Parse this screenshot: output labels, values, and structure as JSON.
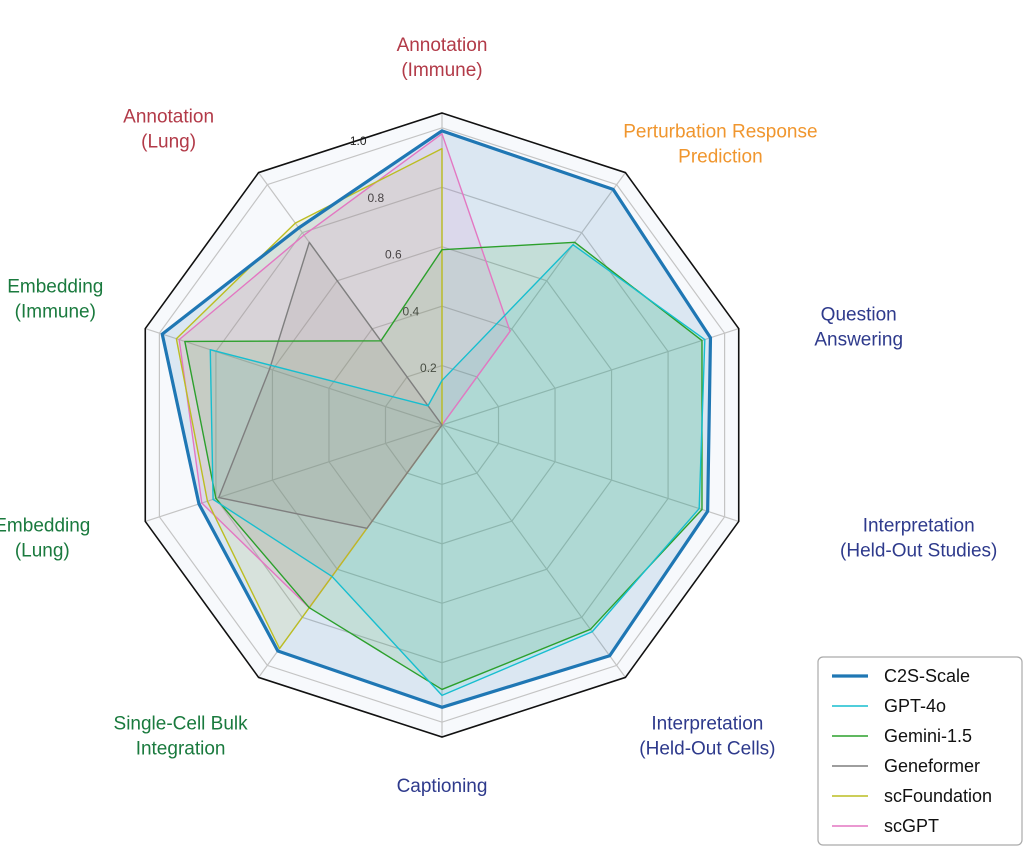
{
  "chart_data": {
    "type": "radar",
    "axes": [
      {
        "lines": [
          "Annotation",
          "(Immune)"
        ],
        "color": "#b23a48"
      },
      {
        "lines": [
          "Perturbation Response",
          "Prediction"
        ],
        "color": "#f0962e"
      },
      {
        "lines": [
          "Question",
          "Answering"
        ],
        "color": "#2e3a8c"
      },
      {
        "lines": [
          "Interpretation",
          "(Held-Out Studies)"
        ],
        "color": "#2e3a8c"
      },
      {
        "lines": [
          "Interpretation",
          "(Held-Out Cells)"
        ],
        "color": "#2e3a8c"
      },
      {
        "lines": [
          "Captioning"
        ],
        "color": "#2e3a8c"
      },
      {
        "lines": [
          "Single-Cell Bulk",
          "Integration"
        ],
        "color": "#1a7a3e"
      },
      {
        "lines": [
          "Embedding",
          "(Lung)"
        ],
        "color": "#1a7a3e"
      },
      {
        "lines": [
          "Embedding",
          "(Immune)"
        ],
        "color": "#1a7a3e"
      },
      {
        "lines": [
          "Annotation",
          "(Lung)"
        ],
        "color": "#b23a48"
      }
    ],
    "r_ticks": [
      "0.2",
      "0.4",
      "0.6",
      "0.8",
      "1.0"
    ],
    "r_tick_values": [
      0.2,
      0.4,
      0.6,
      0.8,
      1.0
    ],
    "r_range": [
      0,
      1.05
    ],
    "grid": true,
    "legend_position": "bottom-right",
    "series": [
      {
        "name": "C2S-Scale",
        "color": "#1f77b4",
        "width": 3.2,
        "fill": true,
        "fill_opacity": 0.13,
        "values": [
          0.99,
          0.98,
          0.95,
          0.94,
          0.96,
          0.95,
          0.94,
          0.86,
          0.99,
          0.82
        ]
      },
      {
        "name": "GPT-4o",
        "color": "#17becf",
        "width": 1.4,
        "fill": true,
        "fill_opacity": 0.12,
        "values": [
          0.15,
          0.75,
          0.93,
          0.91,
          0.86,
          0.91,
          0.63,
          0.81,
          0.82,
          0.08
        ]
      },
      {
        "name": "Gemini-1.5",
        "color": "#2ca02c",
        "width": 1.4,
        "fill": true,
        "fill_opacity": 0.13,
        "values": [
          0.59,
          0.76,
          0.92,
          0.92,
          0.85,
          0.89,
          0.76,
          0.8,
          0.91,
          0.35
        ]
      },
      {
        "name": "Geneformer",
        "color": "#7f7f7f",
        "width": 1.4,
        "fill": true,
        "fill_opacity": 0.13,
        "values": [
          0.0,
          0.0,
          0.0,
          0.0,
          0.0,
          0.0,
          0.43,
          0.79,
          0.61,
          0.76
        ]
      },
      {
        "name": "scFoundation",
        "color": "#bcbd22",
        "width": 1.4,
        "fill": true,
        "fill_opacity": 0.1,
        "values": [
          0.93,
          0.0,
          0.0,
          0.0,
          0.0,
          0.0,
          0.93,
          0.83,
          0.94,
          0.84
        ]
      },
      {
        "name": "scGPT",
        "color": "#e377c2",
        "width": 1.4,
        "fill": true,
        "fill_opacity": 0.13,
        "values": [
          0.98,
          0.39,
          0.0,
          0.0,
          0.0,
          0.0,
          0.76,
          0.85,
          0.93,
          0.79
        ]
      }
    ]
  }
}
